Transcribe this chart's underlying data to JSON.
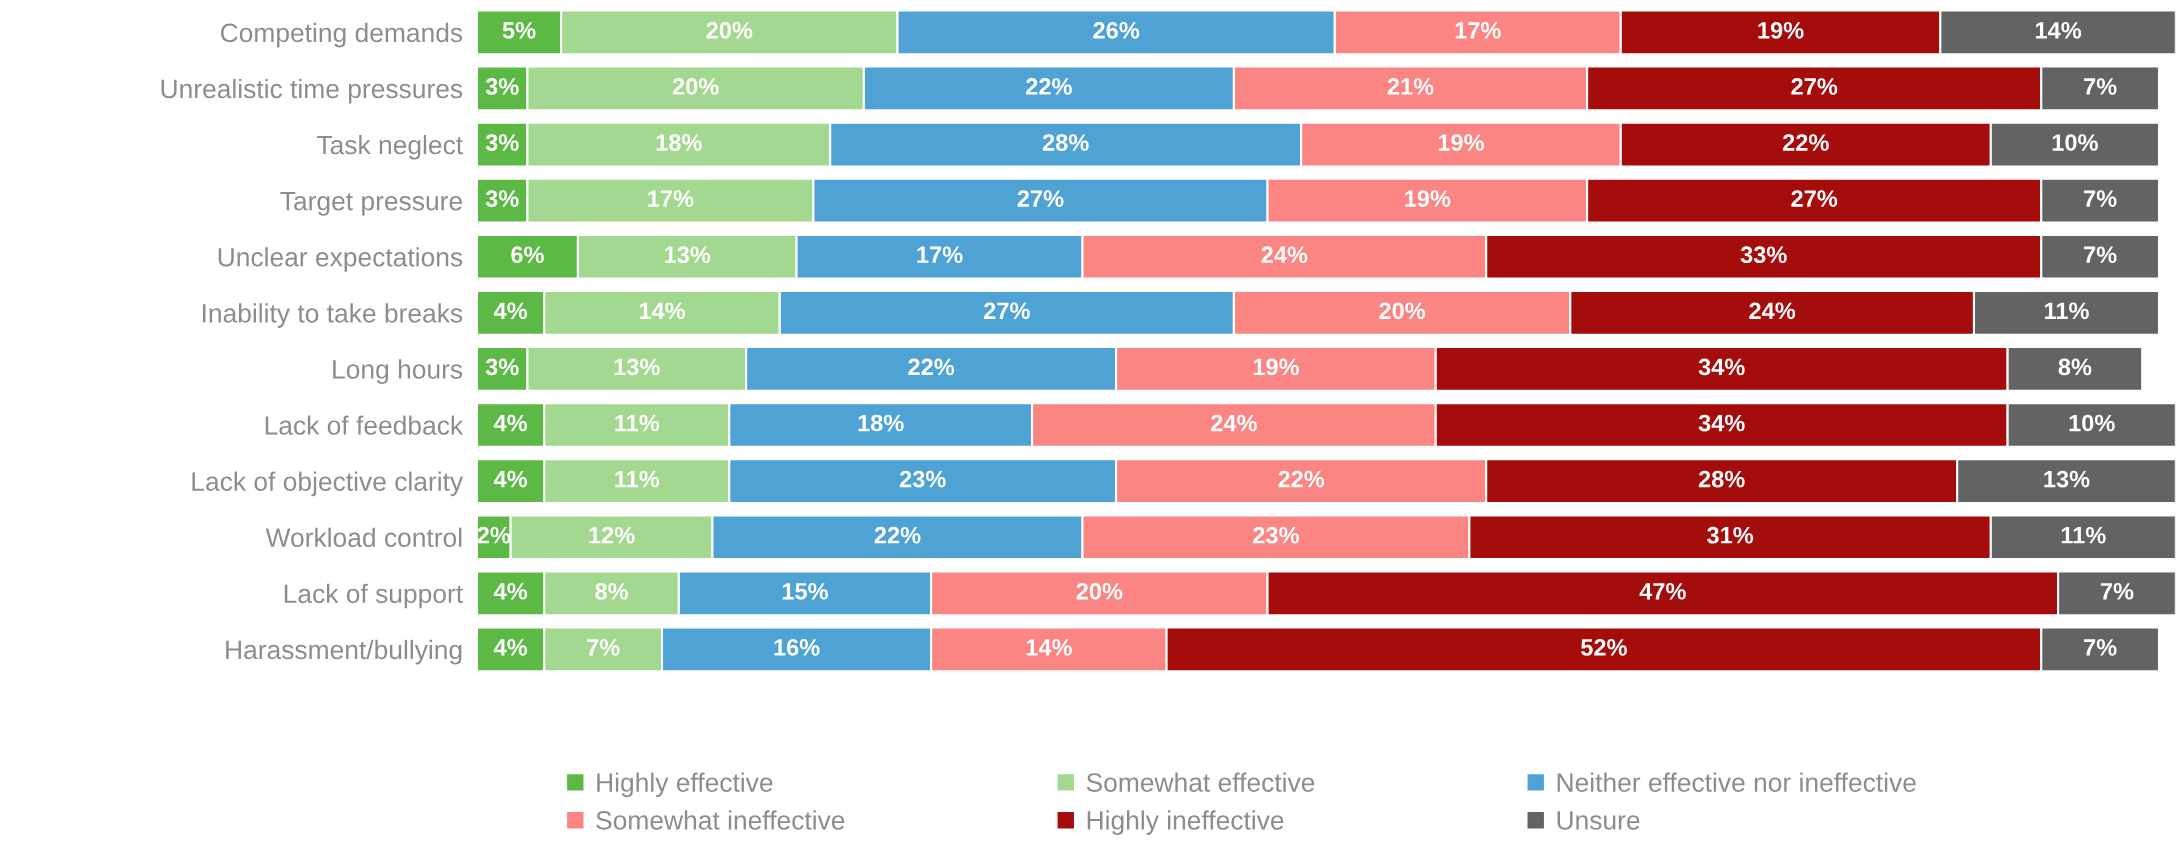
{
  "chart_data": {
    "type": "bar",
    "orientation": "horizontal",
    "stacked": true,
    "legend": "bottom",
    "grid": false,
    "tick_labels": "y",
    "categories": [
      "Competing demands",
      "Unrealistic time pressures",
      "Task neglect",
      "Target pressure",
      "Unclear expectations",
      "Inability to take breaks",
      "Long hours",
      "Lack of feedback",
      "Lack of objective clarity",
      "Workload control",
      "Lack of support",
      "Harassment/bullying"
    ],
    "series": [
      {
        "name": "Highly effective",
        "color": "#5cb946",
        "values": [
          5,
          3,
          3,
          3,
          6,
          4,
          3,
          4,
          4,
          2,
          4,
          4
        ],
        "value_labels": [
          "5%",
          "3%",
          "3%",
          "3%",
          "6%",
          "4%",
          "3%",
          "4%",
          "4%",
          "2%",
          "4%",
          "4%"
        ]
      },
      {
        "name": "Somewhat effective",
        "color": "#a2d88f",
        "values": [
          20,
          20,
          18,
          17,
          13,
          14,
          13,
          11,
          11,
          12,
          8,
          7
        ],
        "value_labels": [
          "20%",
          "20%",
          "18%",
          "17%",
          "13%",
          "14%",
          "13%",
          "11%",
          "11%",
          "12%",
          "8%",
          "7%"
        ]
      },
      {
        "name": "Neither effective nor ineffective",
        "color": "#4fa3d4",
        "values": [
          26,
          22,
          28,
          27,
          17,
          27,
          22,
          18,
          23,
          22,
          15,
          16
        ],
        "value_labels": [
          "26%",
          "22%",
          "28%",
          "27%",
          "17%",
          "27%",
          "22%",
          "18%",
          "23%",
          "22%",
          "15%",
          "16%"
        ]
      },
      {
        "name": "Somewhat ineffective",
        "color": "#fa8582",
        "values": [
          17,
          21,
          19,
          19,
          24,
          20,
          19,
          24,
          22,
          23,
          20,
          14
        ],
        "value_labels": [
          "17%",
          "21%",
          "19%",
          "19%",
          "24%",
          "20%",
          "19%",
          "24%",
          "22%",
          "23%",
          "20%",
          "14%"
        ]
      },
      {
        "name": "Highly ineffective",
        "color": "#a50d0c",
        "values": [
          19,
          27,
          22,
          27,
          33,
          24,
          34,
          34,
          28,
          31,
          47,
          52
        ],
        "value_labels": [
          "19%",
          "27%",
          "22%",
          "27%",
          "33%",
          "24%",
          "34%",
          "34%",
          "28%",
          "31%",
          "47%",
          "52%"
        ]
      },
      {
        "name": "Unsure",
        "color": "#636363",
        "values": [
          14,
          7,
          10,
          7,
          7,
          11,
          8,
          10,
          13,
          11,
          7,
          7
        ],
        "value_labels": [
          "14%",
          "7%",
          "10%",
          "7%",
          "7%",
          "11%",
          "8%",
          "10%",
          "13%",
          "11%",
          "7%",
          "7%"
        ]
      }
    ]
  }
}
